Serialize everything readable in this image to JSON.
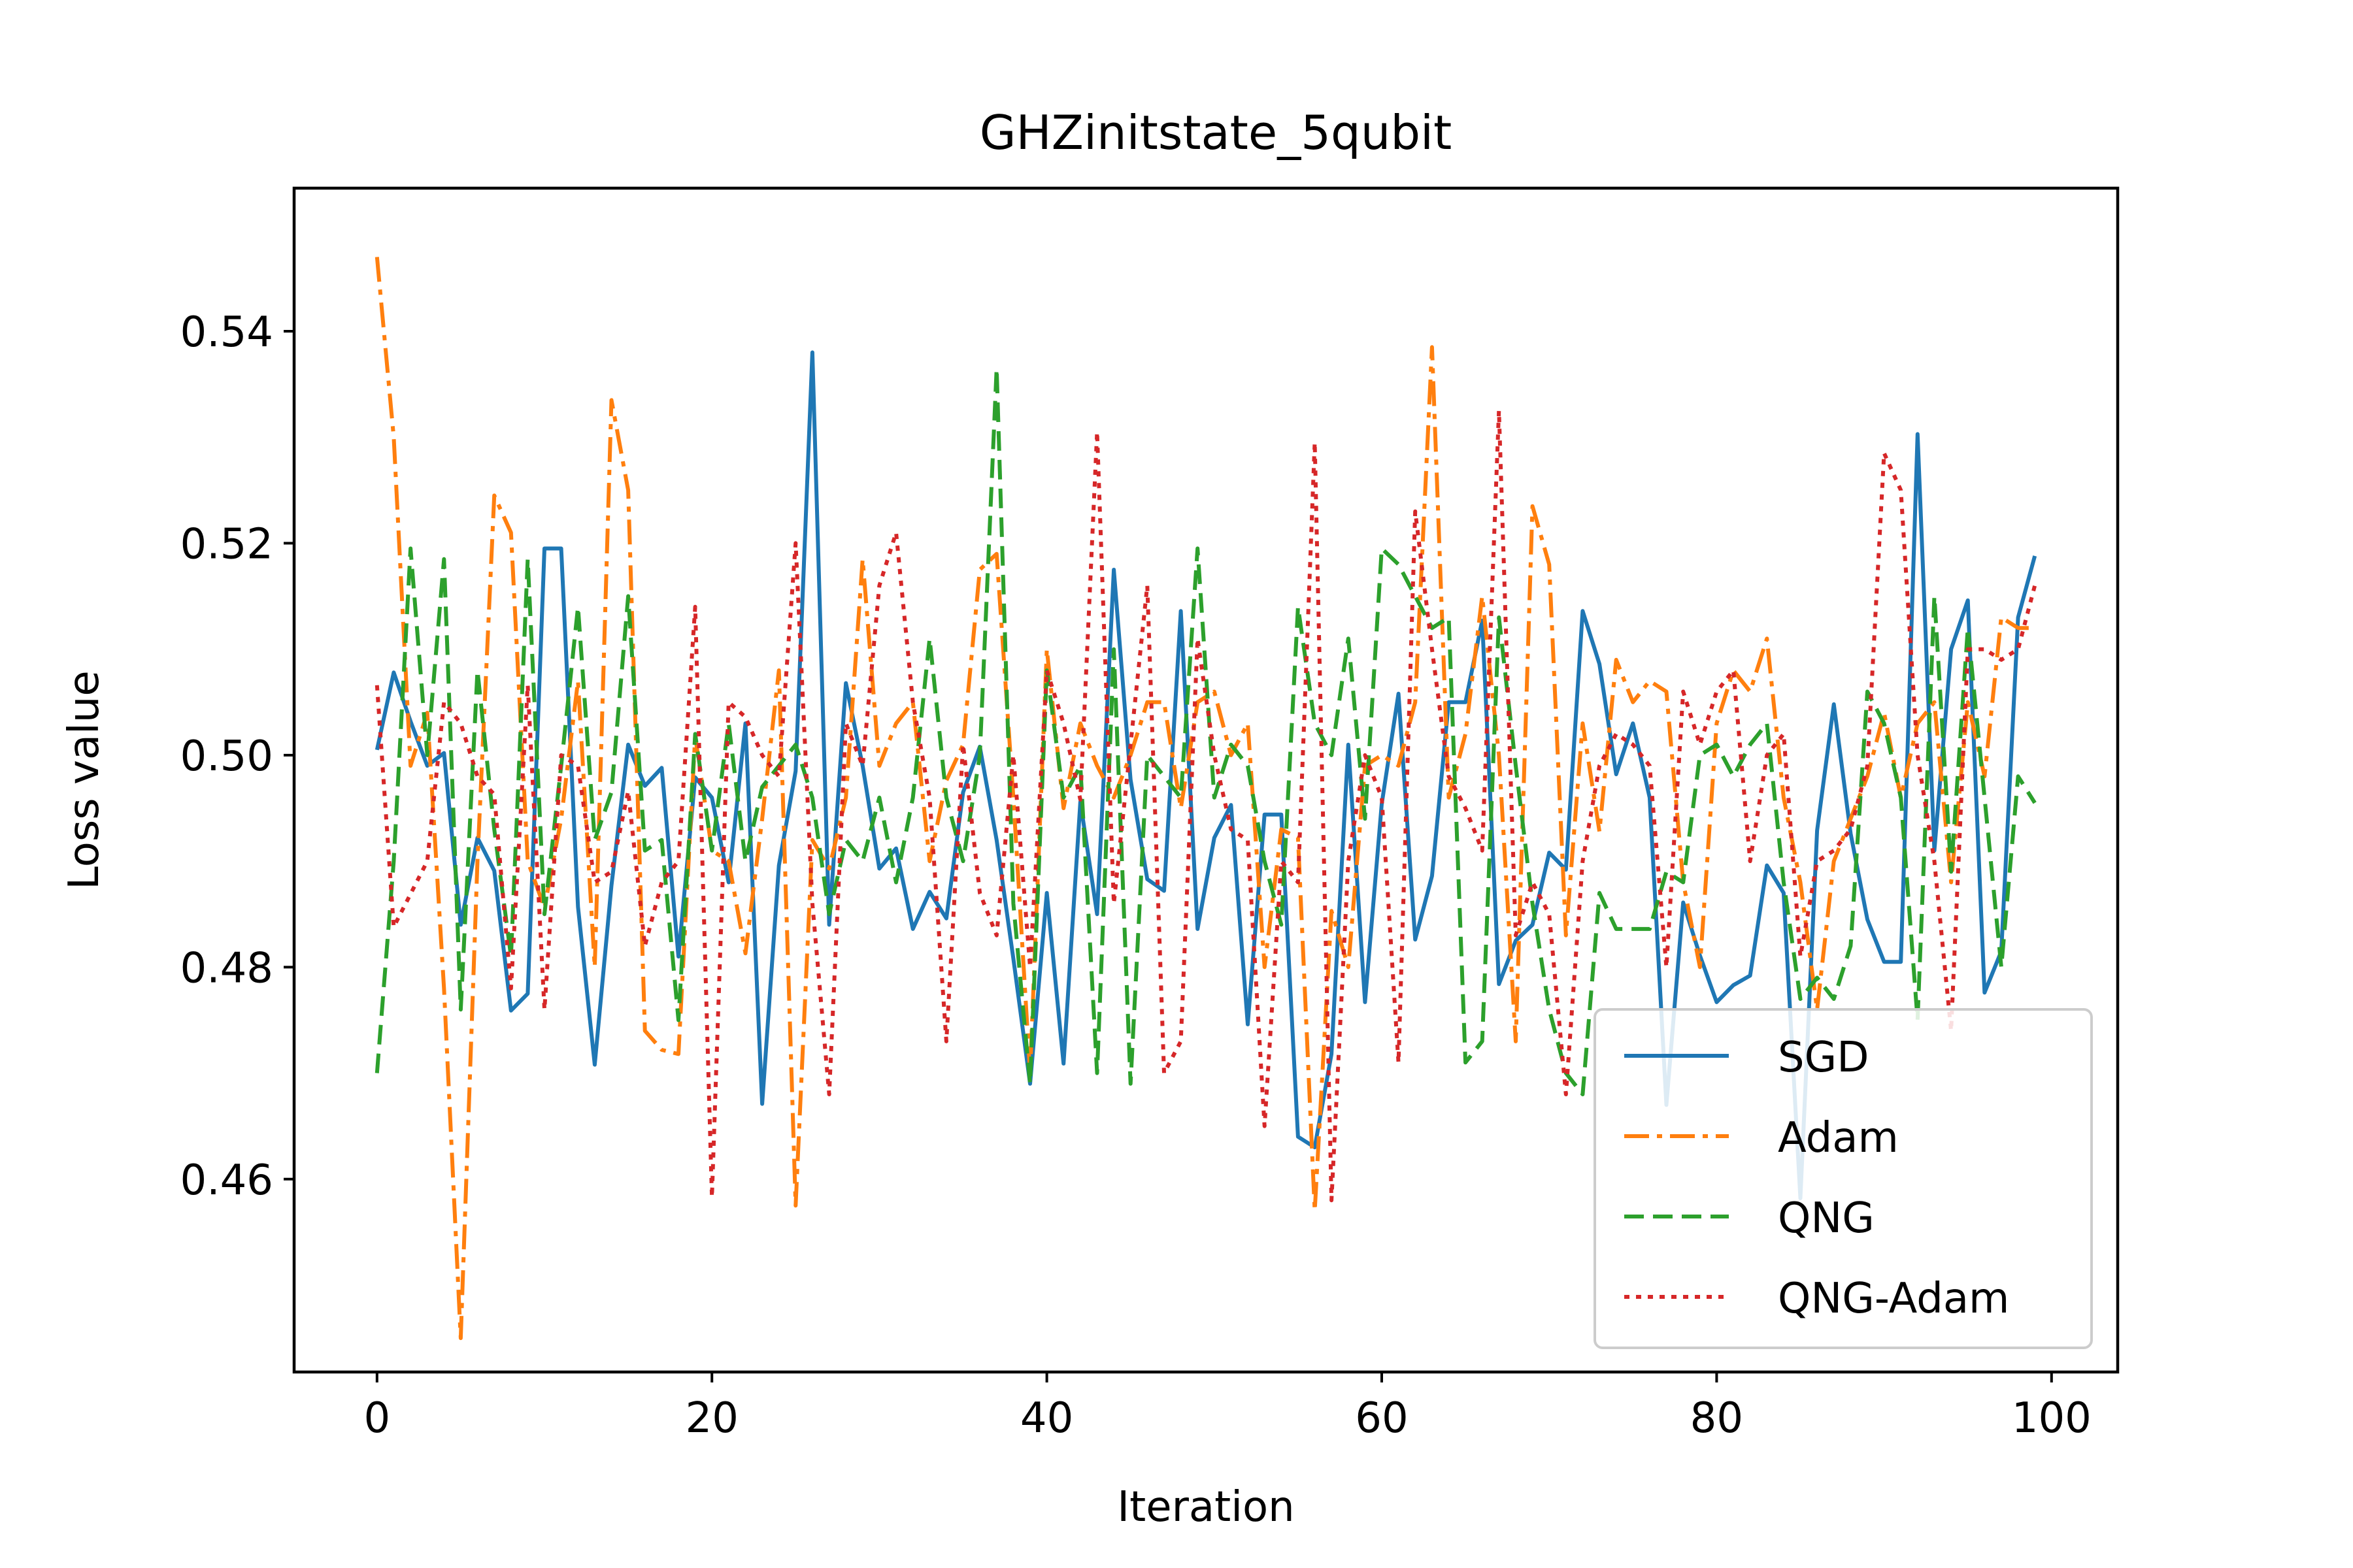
{
  "chart_data": {
    "type": "line",
    "title": "GHZinitstate_5qubit",
    "xlabel": "Iteration",
    "ylabel": "Loss value",
    "xlim": [
      -4.95,
      103.95
    ],
    "ylim": [
      0.4418,
      0.5535
    ],
    "xticks": [
      0,
      20,
      40,
      60,
      80,
      100
    ],
    "yticks": [
      0.46,
      0.48,
      0.5,
      0.52,
      0.54
    ],
    "xtick_labels": [
      "0",
      "20",
      "40",
      "60",
      "80",
      "100"
    ],
    "ytick_labels": [
      "0.46",
      "0.48",
      "0.50",
      "0.52",
      "0.54"
    ],
    "legend_position": "lower-right",
    "grid": false,
    "series": [
      {
        "name": "SGD",
        "color": "#1f77b4",
        "dash": "solid",
        "values": [
          0.5005,
          0.5078,
          0.5032,
          0.499,
          0.5002,
          0.484,
          0.4922,
          0.4891,
          0.4759,
          0.4775,
          0.5195,
          0.5195,
          0.4857,
          0.4708,
          0.4877,
          0.501,
          0.4971,
          0.4988,
          0.481,
          0.4979,
          0.496,
          0.488,
          0.503,
          0.4671,
          0.4896,
          0.4985,
          0.538,
          0.484,
          0.5068,
          0.499,
          0.4893,
          0.4912,
          0.4836,
          0.4871,
          0.4846,
          0.4965,
          0.5008,
          0.492,
          0.4808,
          0.469,
          0.487,
          0.4709,
          0.4956,
          0.485,
          0.5175,
          0.4977,
          0.4883,
          0.4872,
          0.5136,
          0.4836,
          0.4922,
          0.4953,
          0.4746,
          0.4944,
          0.4944,
          0.464,
          0.463,
          0.4718,
          0.501,
          0.4767,
          0.4954,
          0.5058,
          0.4826,
          0.4886,
          0.505,
          0.505,
          0.5127,
          0.4784,
          0.4825,
          0.484,
          0.4908,
          0.4892,
          0.5136,
          0.5086,
          0.4982,
          0.503,
          0.496,
          0.467,
          0.4861,
          0.4811,
          0.4767,
          0.4783,
          0.4792,
          0.4896,
          0.487,
          0.4582,
          0.4929,
          0.5048,
          0.4926,
          0.4845,
          0.4805,
          0.4805,
          0.5303,
          0.491,
          0.51,
          0.5146,
          0.4776,
          0.4815,
          0.513,
          0.5188
        ]
      },
      {
        "name": "Adam",
        "color": "#ff7f0e",
        "dash": "dashdot",
        "values": [
          0.547,
          0.53,
          0.499,
          0.504,
          0.478,
          0.445,
          0.49,
          0.5245,
          0.521,
          0.49,
          0.4856,
          0.494,
          0.507,
          0.48,
          0.5335,
          0.525,
          0.474,
          0.4722,
          0.4718,
          0.5018,
          0.491,
          0.49,
          0.4813,
          0.494,
          0.508,
          0.4575,
          0.492,
          0.4893,
          0.496,
          0.5185,
          0.499,
          0.503,
          0.505,
          0.49,
          0.4976,
          0.501,
          0.5175,
          0.519,
          0.496,
          0.47,
          0.51,
          0.495,
          0.503,
          0.499,
          0.496,
          0.5,
          0.505,
          0.505,
          0.495,
          0.505,
          0.506,
          0.5,
          0.503,
          0.48,
          0.493,
          0.4922,
          0.457,
          0.4853,
          0.48,
          0.499,
          0.5,
          0.499,
          0.505,
          0.5385,
          0.496,
          0.502,
          0.515,
          0.5,
          0.473,
          0.5235,
          0.518,
          0.483,
          0.503,
          0.4928,
          0.509,
          0.505,
          0.507,
          0.506,
          0.488,
          0.48,
          0.503,
          0.508,
          0.506,
          0.511,
          0.496,
          0.488,
          0.476,
          0.49,
          0.494,
          0.498,
          0.504,
          0.496,
          0.503,
          0.505,
          0.488,
          0.505,
          0.498,
          0.513,
          0.512,
          0.512
        ]
      },
      {
        "name": "QNG",
        "color": "#2ca02c",
        "dash": "dashed",
        "values": [
          0.47,
          0.49,
          0.5195,
          0.5,
          0.5185,
          0.476,
          0.508,
          0.493,
          0.481,
          0.5185,
          0.485,
          0.499,
          0.514,
          0.492,
          0.4965,
          0.515,
          0.491,
          0.492,
          0.475,
          0.502,
          0.491,
          0.503,
          0.49,
          0.497,
          0.499,
          0.501,
          0.496,
          0.485,
          0.492,
          0.49,
          0.496,
          0.488,
          0.496,
          0.511,
          0.496,
          0.49,
          0.5,
          0.5365,
          0.486,
          0.469,
          0.508,
          0.496,
          0.499,
          0.47,
          0.51,
          0.469,
          0.5,
          0.498,
          0.496,
          0.5195,
          0.496,
          0.501,
          0.499,
          0.49,
          0.484,
          0.514,
          0.503,
          0.5,
          0.511,
          0.494,
          0.5195,
          0.518,
          0.515,
          0.512,
          0.513,
          0.471,
          0.473,
          0.513,
          0.499,
          0.486,
          0.476,
          0.47,
          0.468,
          0.487,
          0.4836,
          0.4836,
          0.4836,
          0.489,
          0.488,
          0.5,
          0.501,
          0.498,
          0.501,
          0.503,
          0.488,
          0.477,
          0.479,
          0.477,
          0.482,
          0.506,
          0.503,
          0.496,
          0.475,
          0.515,
          0.489,
          0.512,
          0.496,
          0.48,
          0.498,
          0.4955
        ]
      },
      {
        "name": "QNG-Adam",
        "color": "#d62728",
        "dash": "dotted",
        "values": [
          0.5066,
          0.4838,
          0.4869,
          0.49,
          0.505,
          0.503,
          0.498,
          0.4963,
          0.478,
          0.5066,
          0.476,
          0.5,
          0.499,
          0.488,
          0.489,
          0.4966,
          0.482,
          0.488,
          0.49,
          0.514,
          0.4583,
          0.505,
          0.5036,
          0.5,
          0.498,
          0.52,
          0.486,
          0.468,
          0.503,
          0.499,
          0.516,
          0.521,
          0.505,
          0.496,
          0.473,
          0.501,
          0.487,
          0.483,
          0.5,
          0.48,
          0.508,
          0.503,
          0.4958,
          0.5305,
          0.486,
          0.501,
          0.516,
          0.47,
          0.473,
          0.511,
          0.5,
          0.493,
          0.492,
          0.465,
          0.49,
          0.488,
          0.5295,
          0.458,
          0.49,
          0.5,
          0.496,
          0.471,
          0.523,
          0.51,
          0.498,
          0.495,
          0.491,
          0.5325,
          0.483,
          0.488,
          0.485,
          0.468,
          0.49,
          0.499,
          0.502,
          0.501,
          0.499,
          0.48,
          0.506,
          0.501,
          0.506,
          0.508,
          0.49,
          0.5,
          0.502,
          0.481,
          0.49,
          0.491,
          0.493,
          0.499,
          0.5285,
          0.525,
          0.5,
          0.49,
          0.474,
          0.51,
          0.51,
          0.509,
          0.51,
          0.516
        ]
      }
    ]
  }
}
